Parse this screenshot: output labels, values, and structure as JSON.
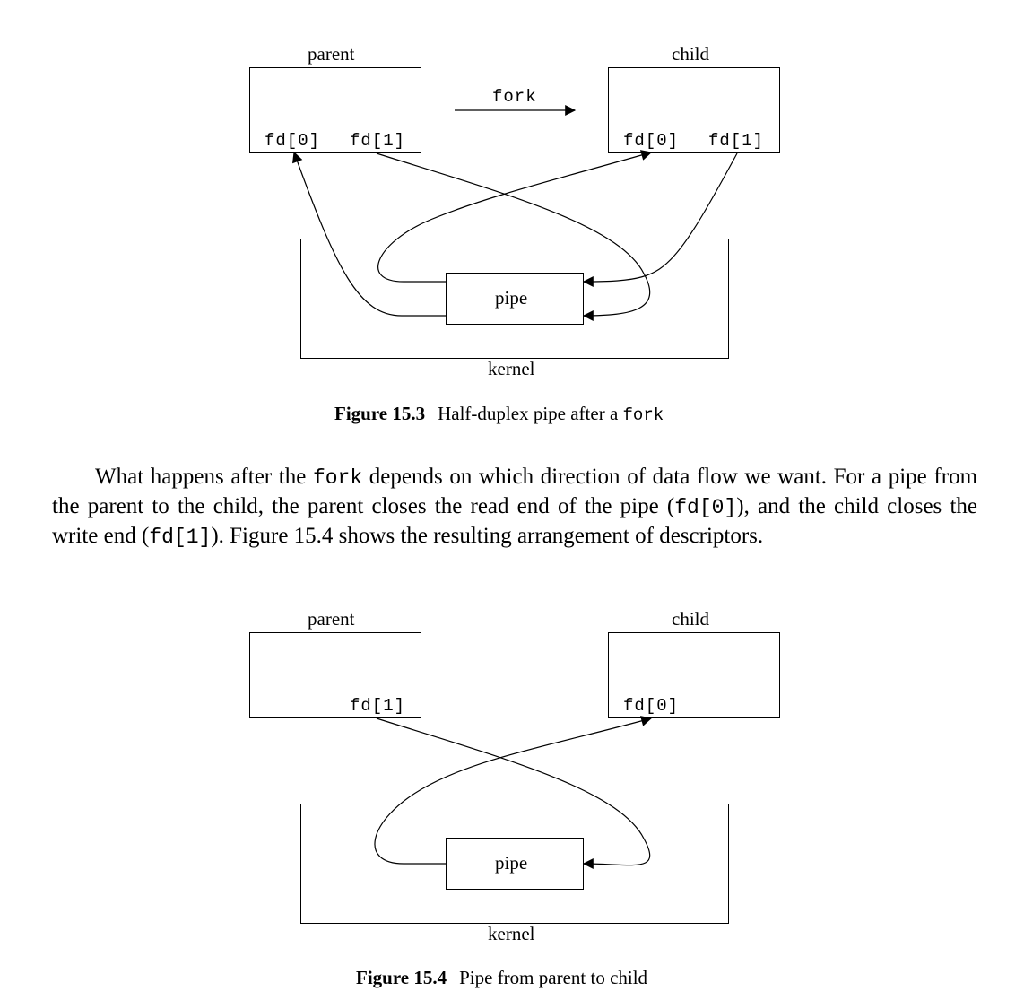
{
  "figure_15_3": {
    "parent_label": "parent",
    "child_label": "child",
    "fork_label": "fork",
    "parent_fd0": "fd[0]",
    "parent_fd1": "fd[1]",
    "child_fd0": "fd[0]",
    "child_fd1": "fd[1]",
    "pipe_label": "pipe",
    "kernel_label": "kernel",
    "caption_number": "Figure 15.3",
    "caption_text": "Half-duplex pipe after a",
    "caption_code": "fork"
  },
  "paragraph": {
    "t1": "What happens after the ",
    "c1": "fork",
    "t2": " depends on which direction of data flow we want. For a pipe from the parent to the child, the parent closes the read end of the pipe (",
    "c2": "fd[0]",
    "t3": "), and the child closes the write end (",
    "c3": "fd[1]",
    "t4": "). Figure 15.4 shows the resulting arrangement of descriptors."
  },
  "figure_15_4": {
    "parent_label": "parent",
    "child_label": "child",
    "parent_fd1": "fd[1]",
    "child_fd0": "fd[0]",
    "pipe_label": "pipe",
    "kernel_label": "kernel",
    "caption_number": "Figure 15.4",
    "caption_text": "Pipe from parent to child"
  }
}
